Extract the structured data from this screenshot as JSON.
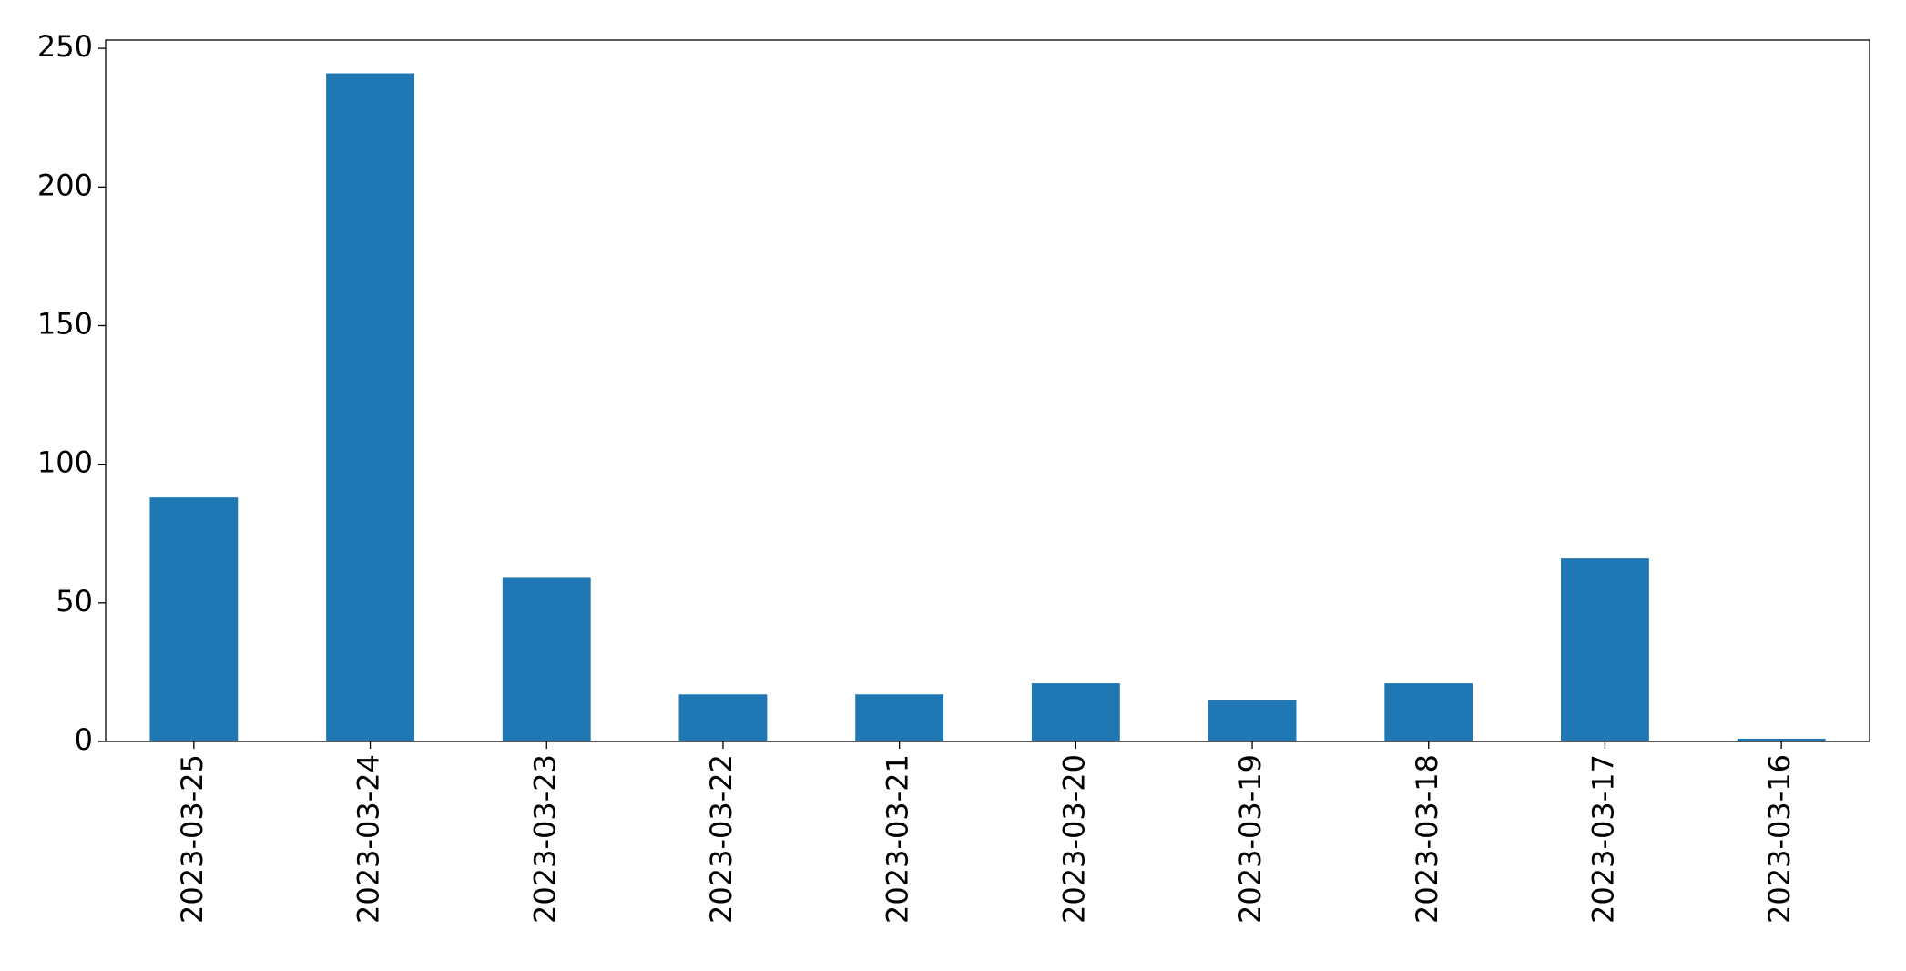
{
  "chart_data": {
    "type": "bar",
    "categories": [
      "2023-03-25",
      "2023-03-24",
      "2023-03-23",
      "2023-03-22",
      "2023-03-21",
      "2023-03-20",
      "2023-03-19",
      "2023-03-18",
      "2023-03-17",
      "2023-03-16"
    ],
    "values": [
      88,
      241,
      59,
      17,
      17,
      21,
      15,
      21,
      66,
      1
    ],
    "color": "#1f77b4",
    "ylim": [
      0,
      253
    ],
    "yticks": [
      0,
      50,
      100,
      150,
      200,
      250
    ],
    "grid": false
  }
}
